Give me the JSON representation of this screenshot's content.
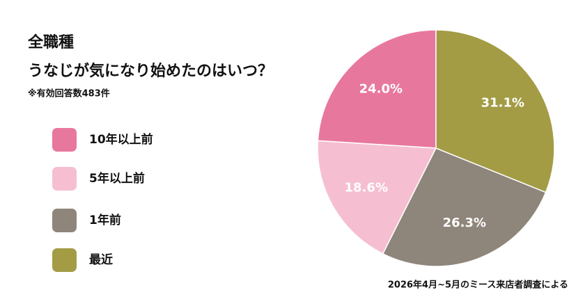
{
  "chart_data": {
    "type": "pie",
    "title": "全職種",
    "subtitle": "うなじが気になり始めたのはいつ？",
    "note": "※有効回答数483件",
    "source": "2026年4月~5月のミース来店者調査による",
    "categories": [
      "10年以上前",
      "5年以上前",
      "1年前",
      "最近"
    ],
    "values": [
      24.0,
      18.6,
      26.3,
      31.1
    ],
    "value_labels": [
      "24.0%",
      "18.6%",
      "26.3%",
      "31.1%"
    ],
    "colors": [
      "#e8779e",
      "#f5bfd1",
      "#8e857b",
      "#a39c45"
    ],
    "direction": "counterclockwise"
  }
}
